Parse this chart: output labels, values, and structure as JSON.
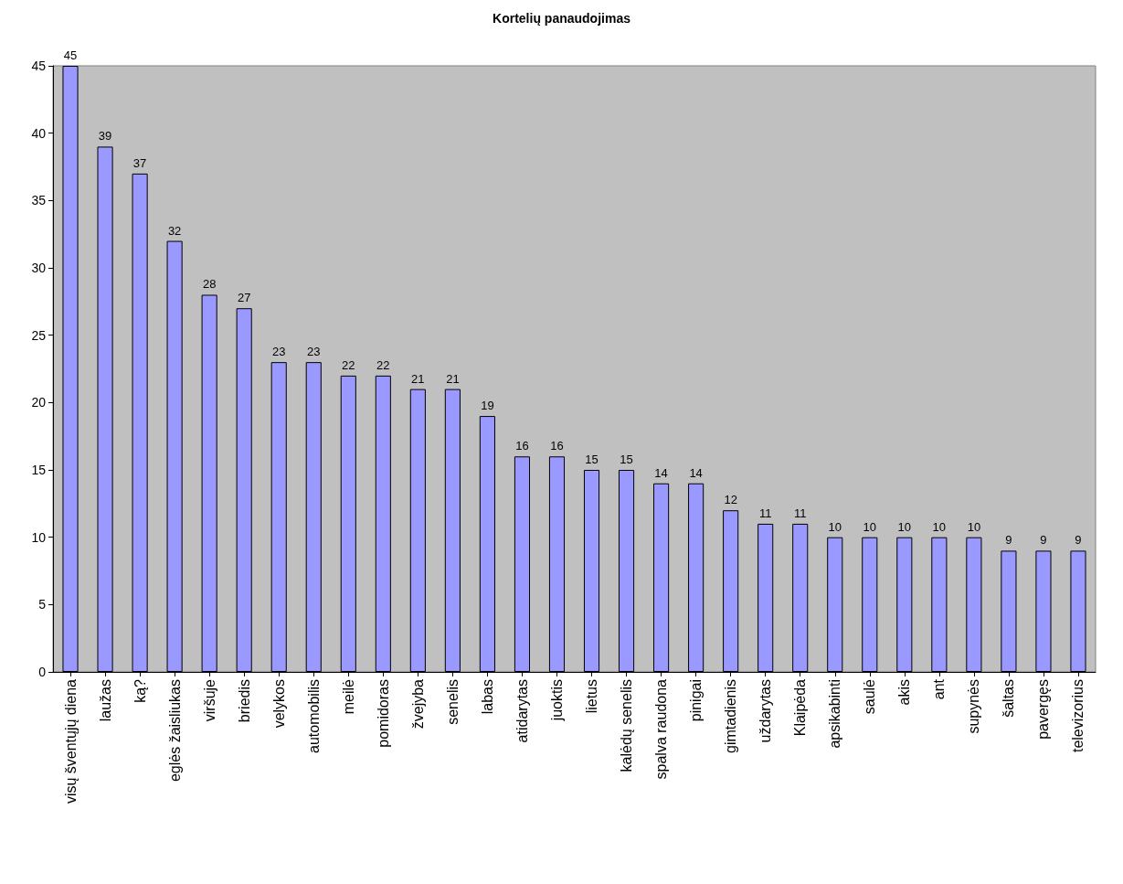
{
  "chart_data": {
    "type": "bar",
    "title": "Kortelių panaudojimas",
    "categories": [
      "visų šventųjų diena",
      "laužas",
      "ką?",
      "eglės žaisliukas",
      "viršuje",
      "briedis",
      "velykos",
      "automobilis",
      "meilė",
      "pomidoras",
      "žvejyba",
      "senelis",
      "labas",
      "atidarytas",
      "juoktis",
      "lietus",
      "kalėdų senelis",
      "spalva raudona",
      "pinigai",
      "gimtadienis",
      "uždarytas",
      "Klaipėda",
      "apsikabinti",
      "saulė",
      "akis",
      "ant",
      "supynės",
      "šaltas",
      "pavergęs",
      "televizorius"
    ],
    "values": [
      45,
      39,
      37,
      32,
      28,
      27,
      23,
      23,
      22,
      22,
      21,
      21,
      19,
      16,
      16,
      15,
      15,
      14,
      14,
      12,
      11,
      11,
      10,
      10,
      10,
      10,
      10,
      9,
      9,
      9
    ],
    "color": "#9999ff",
    "ylim": [
      0,
      45
    ],
    "yticks": [
      0,
      5,
      10,
      15,
      20,
      25,
      30,
      35,
      40,
      45
    ],
    "grid": false,
    "data_labels": true
  }
}
